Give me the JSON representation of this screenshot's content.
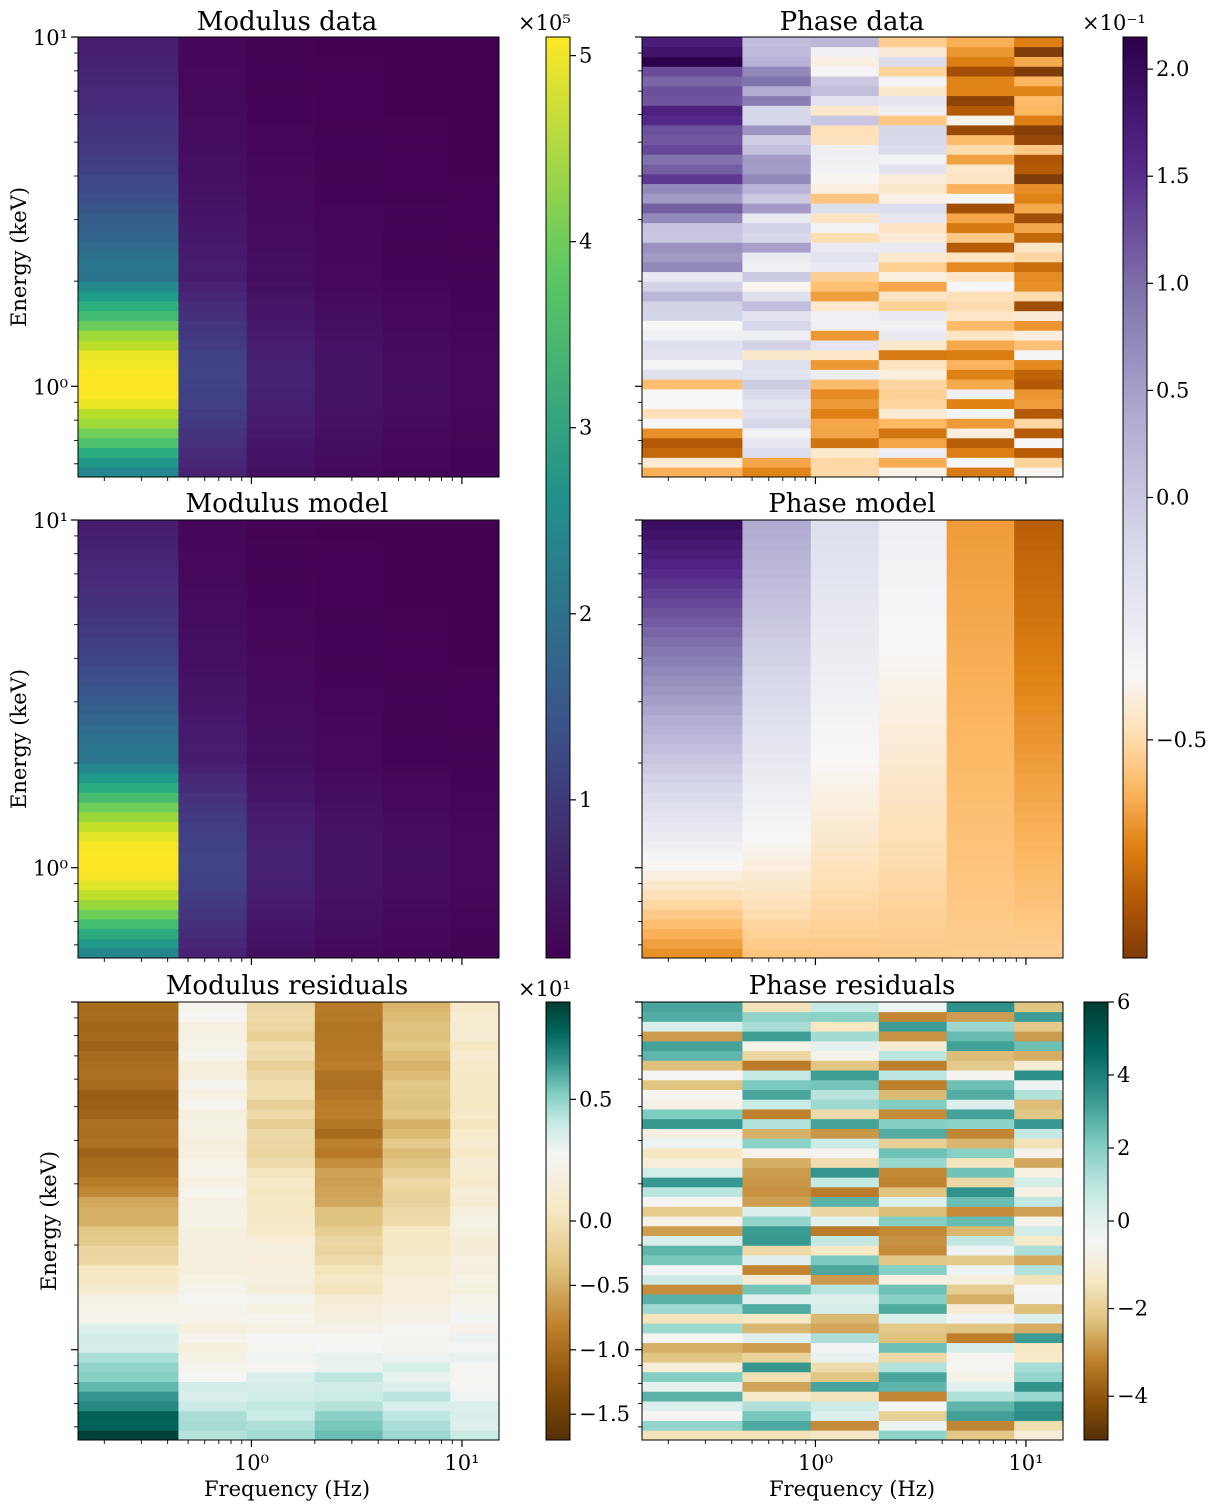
{
  "chart_data": [
    {
      "name": "modulus-data",
      "type": "heatmap",
      "title": "Modulus data",
      "xlabel": "",
      "ylabel": "Energy (keV)",
      "x_scale": "log",
      "y_scale": "log",
      "x_bounds": [
        0.15,
        0.45,
        0.95,
        2.0,
        4.2,
        8.8,
        15.0
      ],
      "y_range": [
        0.55,
        10
      ],
      "y_tick_labels": [
        "10¹",
        "10⁰"
      ],
      "colormap": "viridis",
      "value_range": [
        15000,
        510000
      ],
      "column_profile": [
        1.0,
        0.2,
        0.09,
        0.05,
        0.03,
        0.02
      ],
      "energy_peak": 1.05,
      "energy_peak_value": 500000,
      "step_energy": 2.1
    },
    {
      "name": "phase-data",
      "type": "heatmap",
      "title": "Phase data",
      "xlabel": "",
      "ylabel": "",
      "x_scale": "log",
      "y_scale": "log",
      "colormap": "PuOr",
      "value_range": [
        -0.095,
        0.215
      ],
      "noise": "high"
    },
    {
      "name": "modulus-model",
      "type": "heatmap",
      "title": "Modulus model",
      "xlabel": "",
      "ylabel": "Energy (keV)",
      "x_scale": "log",
      "y_scale": "log",
      "y_tick_labels": [
        "10¹",
        "10⁰"
      ],
      "colormap": "viridis",
      "value_range": [
        15000,
        510000
      ],
      "colorbar": {
        "ticks": [
          1,
          2,
          3,
          4,
          5
        ],
        "tick_labels": [
          "1",
          "2",
          "3",
          "4",
          "5"
        ],
        "offset_label": "×10⁵",
        "range": [
          0.15,
          5.1
        ]
      }
    },
    {
      "name": "phase-model",
      "type": "heatmap",
      "title": "Phase model",
      "xlabel": "",
      "ylabel": "",
      "x_scale": "log",
      "y_scale": "log",
      "colormap": "PuOr",
      "value_range": [
        -0.095,
        0.215
      ],
      "column_lag": [
        0.06,
        0.04,
        0.01,
        -0.005,
        -0.04,
        -0.055
      ],
      "colorbar": {
        "ticks": [
          2.0,
          1.5,
          1.0,
          0.5,
          0.0,
          -0.5
        ],
        "tick_labels": [
          "2.0",
          "1.5",
          "1.0",
          "0.5",
          "0.0",
          "−0.5"
        ],
        "offset_label": "×10⁻¹",
        "range": [
          -0.95,
          2.15
        ]
      }
    },
    {
      "name": "modulus-residuals",
      "type": "heatmap",
      "title": "Modulus residuals",
      "xlabel": "Frequency (Hz)",
      "ylabel": "Energy (keV)",
      "x_scale": "log",
      "y_scale": "log",
      "x_tick_labels": [
        "10⁰",
        "10¹"
      ],
      "colormap": "BrBG",
      "value_range": [
        -17,
        9
      ],
      "column_amplitude": [
        -14,
        -1,
        -5,
        -11,
        -7,
        -3
      ],
      "colorbar": {
        "ticks": [
          0.5,
          0.0,
          -0.5,
          -1.0,
          -1.5
        ],
        "tick_labels": [
          "0.5",
          "0.0",
          "−0.5",
          "−1.0",
          "−1.5"
        ],
        "offset_label": "×10¹",
        "range": [
          -1.7,
          0.9
        ]
      }
    },
    {
      "name": "phase-residuals",
      "type": "heatmap",
      "title": "Phase residuals",
      "xlabel": "Frequency (Hz)",
      "ylabel": "",
      "x_scale": "log",
      "y_scale": "log",
      "x_tick_labels": [
        "10⁰",
        "10¹"
      ],
      "colormap": "BrBG",
      "value_range": [
        -5,
        6
      ],
      "colorbar": {
        "ticks": [
          6,
          4,
          2,
          0,
          -2,
          -4
        ],
        "tick_labels": [
          "6",
          "4",
          "2",
          "0",
          "−2",
          "−4"
        ],
        "offset_label": "",
        "range": [
          -5,
          6
        ]
      }
    }
  ]
}
